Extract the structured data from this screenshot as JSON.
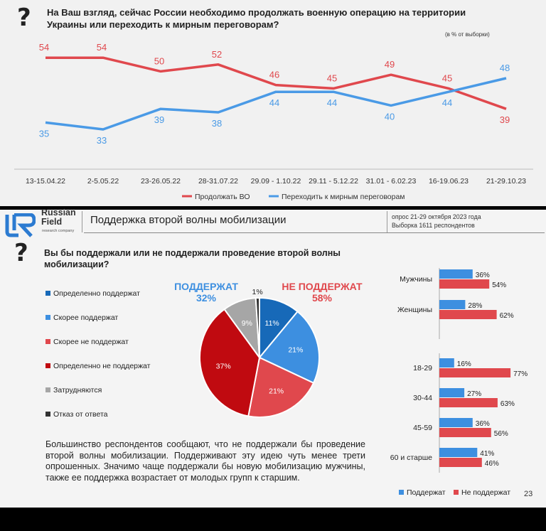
{
  "line_chart": {
    "question": "На Ваш взгляд, сейчас России необходимо продолжать военную операцию на территории Украины или переходить к мирным переговорам?",
    "note": "(в % от выборки)",
    "legend": [
      "Продолжать ВО",
      "Переходить к мирным переговорам"
    ]
  },
  "header": {
    "logo_text": [
      "Russian",
      "Field"
    ],
    "logo_sub": "research company",
    "title": "Поддержка второй волны мобилизации",
    "info_line1": "опрос 21-29 октября 2023 года",
    "info_line2": "Выборка 1611 респондентов"
  },
  "mobilization": {
    "question": "Вы бы поддержали или не поддержали проведение второй волны мобилизации?",
    "support_label": "ПОДДЕРЖАТ",
    "support_value": "32%",
    "oppose_label": "НЕ ПОДДЕРЖАТ",
    "oppose_value": "58%",
    "pie_legend": [
      "Определенно поддержат",
      "Скорее поддержат",
      "Скорее не поддержат",
      "Определенно не поддержат",
      "Затрудняются",
      "Отказ от ответа"
    ],
    "summary": "Большинство респондентов сообщают, что не поддержали бы проведение второй волны мобилизации. Поддерживают эту идею чуть менее трети опрошенных. Значимо чаще поддержали бы новую мобилизацию мужчины, также ее поддержка возрастает от молодых групп к старшим.",
    "bar_legend": [
      "Поддержат",
      "Не поддержат"
    ],
    "page_number": "23"
  },
  "colors": {
    "line_continue": "#e0484d",
    "line_talks": "#4a9ae6",
    "def_support": "#1769b8",
    "rather_support": "#3d8fe0",
    "rather_oppose": "#e0484d",
    "def_oppose": "#c00a10",
    "hard": "#a6a6a6",
    "refuse": "#333333",
    "bar_support": "#3d8fe0",
    "bar_oppose": "#e0484d",
    "support_text": "#3d8fe0",
    "oppose_text": "#e0484d"
  },
  "icons": [
    "question-mark-icon",
    "russian-field-logo-icon"
  ],
  "chart_data": [
    {
      "type": "line",
      "x": [
        "13-15.04.22",
        "2-5.05.22",
        "23-26.05.22",
        "28-31.07.22",
        "29.09 - 1.10.22",
        "29.11 - 5.12.22",
        "31.01 - 6.02.23",
        "16-19.06.23",
        "21-29.10.23"
      ],
      "series": [
        {
          "name": "Продолжать ВО",
          "values": [
            54,
            54,
            50,
            52,
            46,
            45,
            49,
            45,
            39
          ]
        },
        {
          "name": "Переходить к мирным переговорам",
          "values": [
            35,
            33,
            39,
            38,
            44,
            44,
            40,
            44,
            48
          ]
        }
      ],
      "ylim": [
        28,
        58
      ]
    },
    {
      "type": "pie",
      "categories": [
        "Определенно поддержат",
        "Скорее поддержат",
        "Скорее не поддержат",
        "Определенно не поддержат",
        "Затрудняются",
        "Отказ от ответа"
      ],
      "values": [
        11,
        21,
        21,
        37,
        9,
        1
      ]
    },
    {
      "type": "bar",
      "categories": [
        "Мужчины",
        "Женщины",
        "18-29",
        "30-44",
        "45-59",
        "60 и старше"
      ],
      "series": [
        {
          "name": "Поддержат",
          "values": [
            36,
            28,
            16,
            27,
            36,
            41
          ]
        },
        {
          "name": "Не поддержат",
          "values": [
            54,
            62,
            77,
            63,
            56,
            46
          ]
        }
      ],
      "xlim": [
        0,
        100
      ]
    }
  ]
}
